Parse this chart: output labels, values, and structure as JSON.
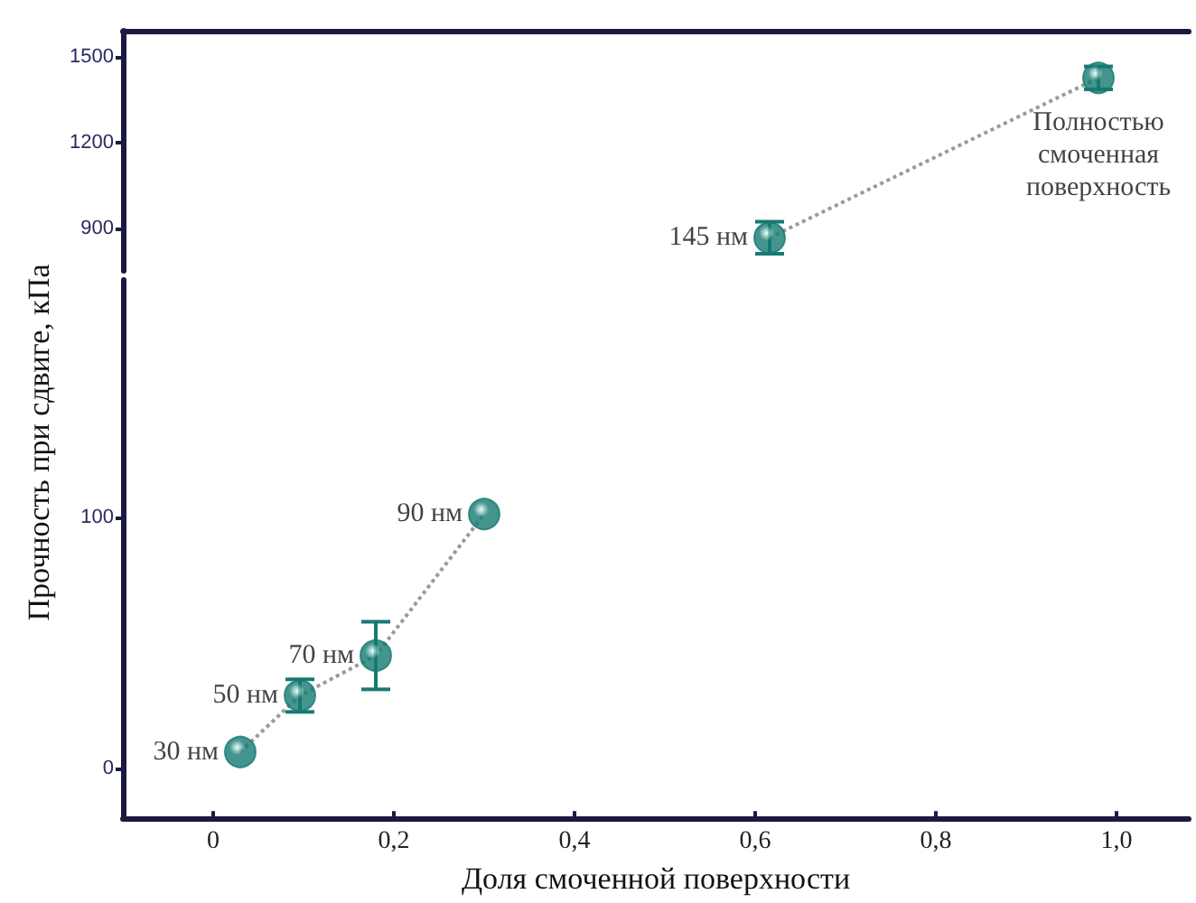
{
  "chart_data": [
    {
      "type": "scatter",
      "x": [
        0.616,
        0.98
      ],
      "values": [
        866,
        1425
      ],
      "errors": [
        56,
        40
      ],
      "color": "#167a72",
      "line_style": "dotted",
      "marker": "circle",
      "xlim": [
        -0.1,
        1.08
      ],
      "ylim": [
        750,
        1590
      ],
      "yticks": [
        900,
        1200,
        1500
      ],
      "tick_labels": "y",
      "grid": false,
      "annotations": [
        {
          "text": "145 нм",
          "x": 0.616,
          "y": 866
        },
        {
          "text": "Полностью смоченная поверхность",
          "x": 0.98,
          "y": 1425
        }
      ]
    },
    {
      "type": "scatter",
      "x": [
        0.03,
        0.096,
        0.18,
        0.3
      ],
      "values": [
        6.5,
        29,
        45,
        101.5
      ],
      "errors": [
        null,
        6.5,
        13.5,
        null
      ],
      "color": "#167a72",
      "line_style": "dotted",
      "marker": "circle",
      "xlim": [
        -0.1,
        1.08
      ],
      "xticks": [
        {
          "value": 0,
          "label": "0"
        },
        {
          "value": 0.2,
          "label": "0,2"
        },
        {
          "value": 0.4,
          "label": "0,4"
        },
        {
          "value": 0.6,
          "label": "0,6"
        },
        {
          "value": 0.8,
          "label": "0,8"
        },
        {
          "value": 1.0,
          "label": "1,0"
        }
      ],
      "ylim": [
        -20,
        195
      ],
      "yticks": [
        0,
        100
      ],
      "grid": false,
      "xlabel": "Доля смоченной поверхности",
      "ylabel": "Прочность при сдвиге, кПа",
      "annotations": [
        {
          "text": "30 нм",
          "x": 0.03,
          "y": 6.5
        },
        {
          "text": "50 нм",
          "x": 0.096,
          "y": 29
        },
        {
          "text": "70 нм",
          "x": 0.18,
          "y": 45
        },
        {
          "text": "90 нм",
          "x": 0.3,
          "y": 101.5
        }
      ]
    }
  ]
}
